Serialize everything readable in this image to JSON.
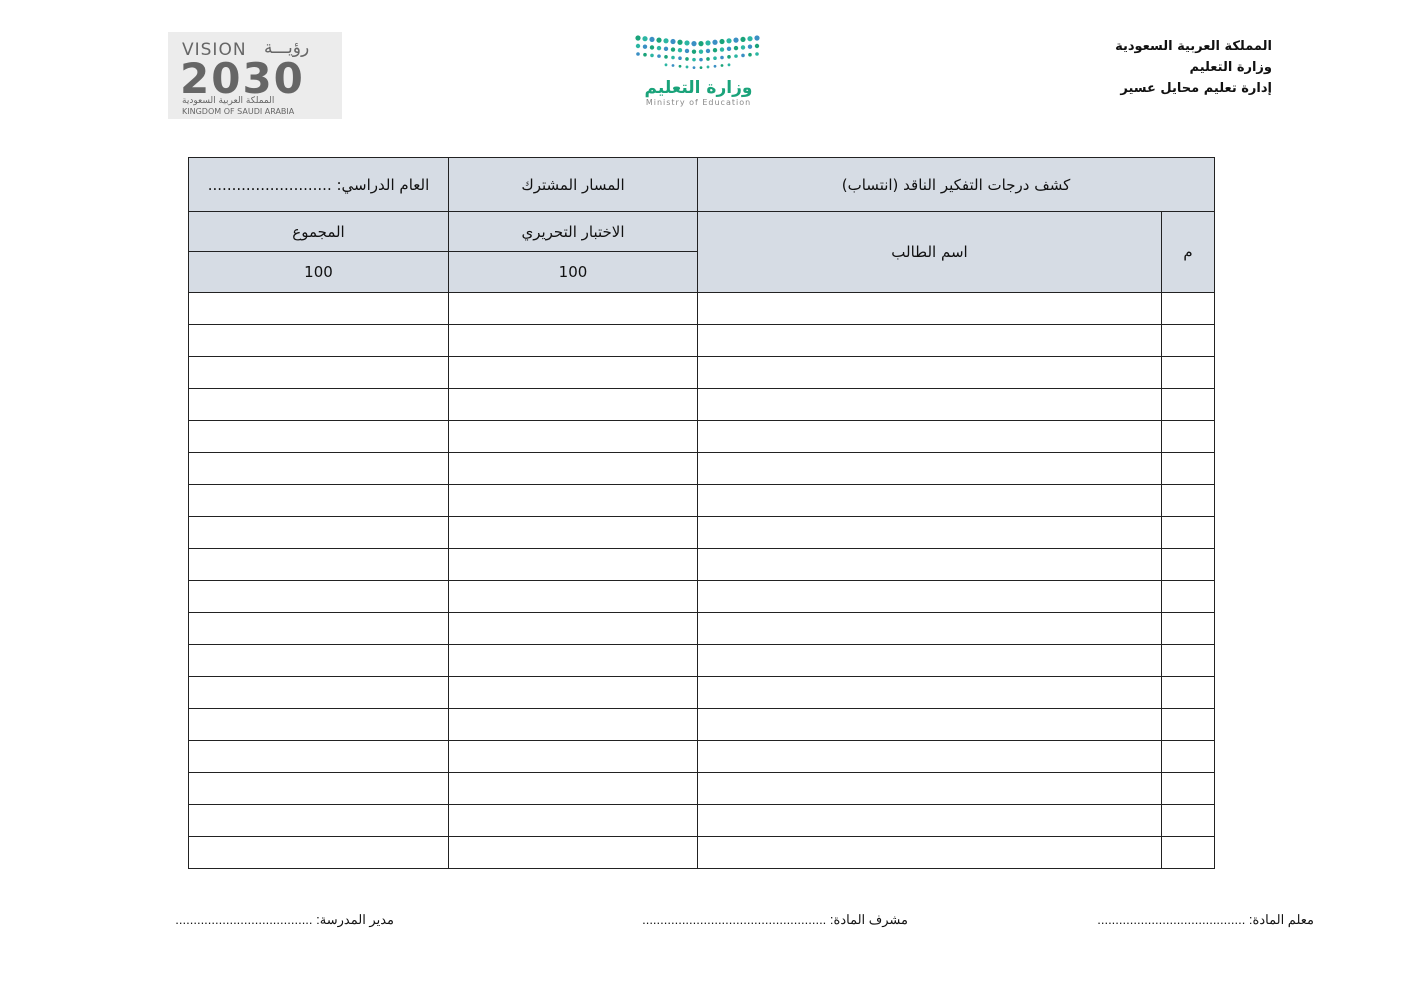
{
  "header": {
    "lines": [
      "المملكة العربية السعودية",
      "وزارة التعليم",
      "إدارة تعليم محايل عسير"
    ],
    "vision_logo": {
      "word_en": "VISION",
      "word_ar": "رؤيـــة",
      "year": "2030",
      "kingdom_ar": "المملكة العربية السعودية",
      "kingdom_en": "KINGDOM OF SAUDI ARABIA"
    },
    "ministry_logo": {
      "name_ar": "وزارة التعليم",
      "name_en": "Ministry of Education"
    }
  },
  "table": {
    "title": "كشف درجات التفكير الناقد (انتساب)",
    "track": "المسار المشترك",
    "year": "العام الدراسي: ..........................",
    "columns": [
      "م",
      "اسم الطالب",
      "الاختبار التحريري",
      "المجموع"
    ],
    "max_scores": [
      100,
      100
    ]
  },
  "footer": [
    "معلم المادة: .........................................",
    "مشرف المادة: ...................................................",
    "مدير المدرسة: ......................................"
  ]
}
